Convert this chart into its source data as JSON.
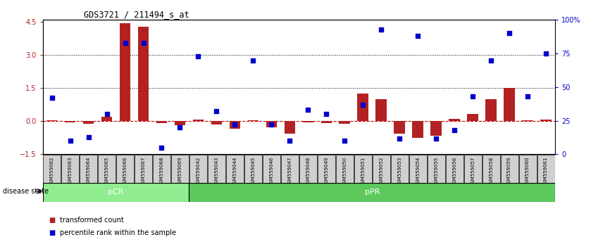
{
  "title": "GDS3721 / 211494_s_at",
  "samples": [
    "GSM559062",
    "GSM559063",
    "GSM559064",
    "GSM559065",
    "GSM559066",
    "GSM559067",
    "GSM559068",
    "GSM559069",
    "GSM559042",
    "GSM559043",
    "GSM559044",
    "GSM559045",
    "GSM559046",
    "GSM559047",
    "GSM559048",
    "GSM559049",
    "GSM559050",
    "GSM559051",
    "GSM559052",
    "GSM559053",
    "GSM559054",
    "GSM559055",
    "GSM559056",
    "GSM559057",
    "GSM559058",
    "GSM559059",
    "GSM559060",
    "GSM559061"
  ],
  "transformed_count": [
    0.04,
    -0.04,
    -0.1,
    0.22,
    4.45,
    4.3,
    -0.08,
    -0.18,
    0.08,
    -0.15,
    -0.35,
    0.06,
    -0.28,
    -0.55,
    -0.06,
    -0.08,
    -0.12,
    1.25,
    1.0,
    -0.55,
    -0.75,
    -0.65,
    0.12,
    0.35,
    1.0,
    1.5,
    0.06,
    0.08
  ],
  "percentile_rank": [
    42,
    10,
    13,
    30,
    83,
    83,
    5,
    20,
    73,
    32,
    22,
    70,
    22,
    10,
    33,
    30,
    10,
    37,
    93,
    12,
    88,
    12,
    18,
    43,
    70,
    90,
    43,
    75
  ],
  "pCR_count": 8,
  "pPR_count": 20,
  "ylim_left": [
    -1.5,
    4.6
  ],
  "ylim_right": [
    0,
    100
  ],
  "yticks_left": [
    -1.5,
    0,
    1.5,
    3.0,
    4.5
  ],
  "yticks_right": [
    0,
    25,
    50,
    75,
    100
  ],
  "ytick_labels_right": [
    "0",
    "25",
    "50",
    "75",
    "100%"
  ],
  "dotted_lines": [
    1.5,
    3.0
  ],
  "bar_color": "#b22222",
  "dot_color": "#0000cd",
  "pCR_color": "#90ee90",
  "pPR_color": "#5dc95d",
  "zero_line_color": "#cc0000",
  "legend_bar_label": "transformed count",
  "legend_dot_label": "percentile rank within the sample",
  "disease_state_label": "disease state"
}
